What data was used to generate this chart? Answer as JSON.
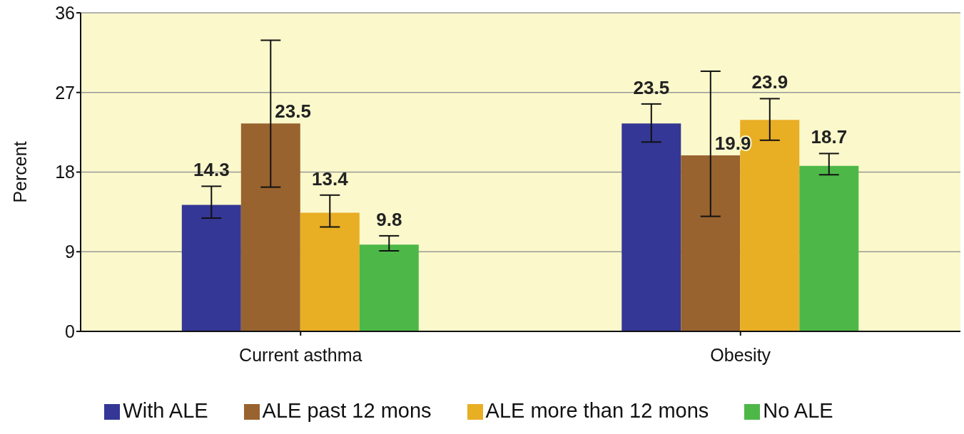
{
  "chart_data": {
    "type": "bar",
    "ylabel": "Percent",
    "categories": [
      "Current asthma",
      "Obesity"
    ],
    "series": [
      {
        "name": "With ALE",
        "color": "#343795",
        "values": [
          14.3,
          23.5
        ],
        "errors": [
          [
            12.8,
            16.4
          ],
          [
            21.4,
            25.7
          ]
        ]
      },
      {
        "name": "ALE  past 12 mons",
        "color": "#98632f",
        "values": [
          23.5,
          19.9
        ],
        "errors": [
          [
            16.3,
            32.9
          ],
          [
            13.0,
            29.4
          ]
        ]
      },
      {
        "name": "ALE  more than 12 mons",
        "color": "#e8ae24",
        "values": [
          13.4,
          23.9
        ],
        "errors": [
          [
            11.8,
            15.4
          ],
          [
            21.6,
            26.3
          ]
        ]
      },
      {
        "name": "No ALE",
        "color": "#4db848",
        "values": [
          9.8,
          18.7
        ],
        "errors": [
          [
            9.1,
            10.8
          ],
          [
            17.7,
            20.1
          ]
        ]
      }
    ],
    "ylim": [
      0,
      36
    ],
    "yticks": [
      0,
      9,
      18,
      27,
      36
    ],
    "grid": "y",
    "legend": "bottom",
    "data_labels": true
  }
}
